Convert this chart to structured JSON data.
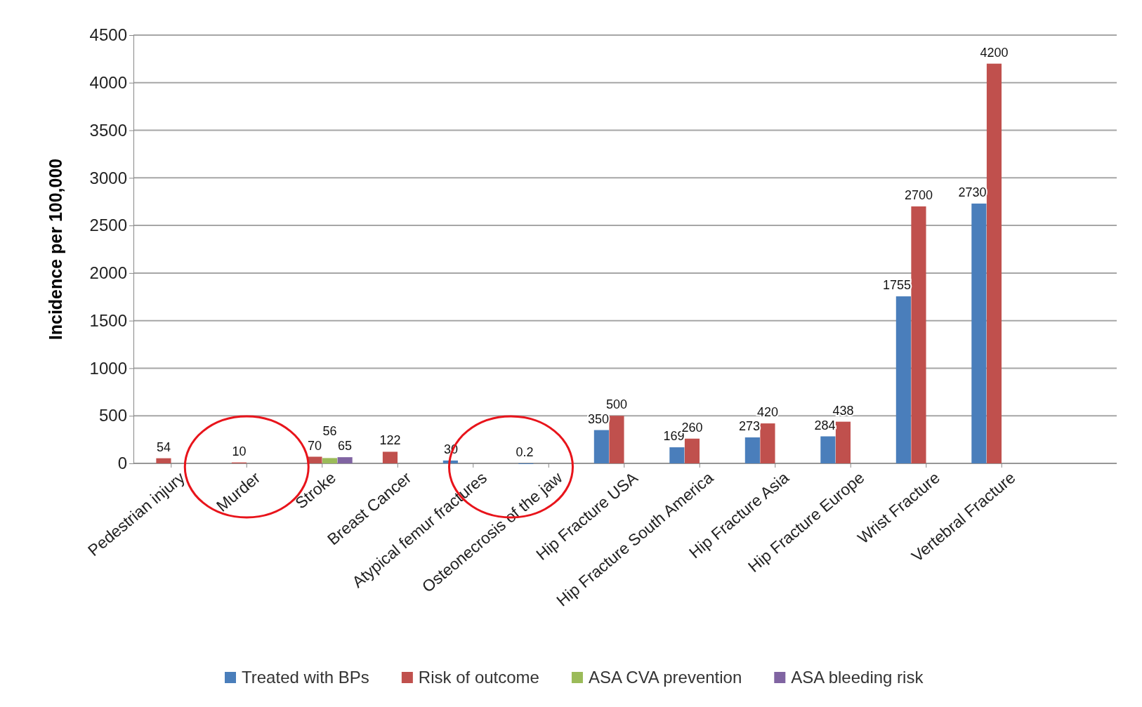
{
  "chart_data": {
    "type": "bar",
    "ylabel": "Incidence per 100,000",
    "categories": [
      "Pedestrian injury",
      "Murder",
      "Stroke",
      "Breast Cancer",
      "Atypical femur fractures",
      "Osteonecrosis of the jaw",
      "Hip Fracture USA",
      "Hip Fracture South America",
      "Hip Fracture Asia",
      "Hip Fracture Europe",
      "Wrist Fracture",
      "Vertebral Fracture"
    ],
    "series": [
      {
        "name": "Treated with BPs",
        "color": "#4a7ebb",
        "values": [
          null,
          null,
          null,
          null,
          30,
          0.2,
          350,
          169,
          273,
          284,
          1755,
          2730
        ]
      },
      {
        "name": "Risk of outcome",
        "color": "#c0504d",
        "values": [
          54,
          10,
          70,
          122,
          null,
          null,
          500,
          260,
          420,
          438,
          2700,
          4200
        ]
      },
      {
        "name": "ASA CVA prevention",
        "color": "#9bbb59",
        "values": [
          null,
          null,
          56,
          null,
          null,
          null,
          null,
          null,
          null,
          null,
          null,
          null
        ]
      },
      {
        "name": "ASA bleeding risk",
        "color": "#8064a2",
        "values": [
          null,
          null,
          65,
          null,
          null,
          null,
          null,
          null,
          null,
          null,
          null,
          null
        ]
      }
    ],
    "ylim": [
      0,
      4500
    ],
    "yticks": [
      0,
      500,
      1000,
      1500,
      2000,
      2500,
      3000,
      3500,
      4000,
      4500
    ],
    "grid": "y",
    "legend": "bottom",
    "data_labels": true
  }
}
